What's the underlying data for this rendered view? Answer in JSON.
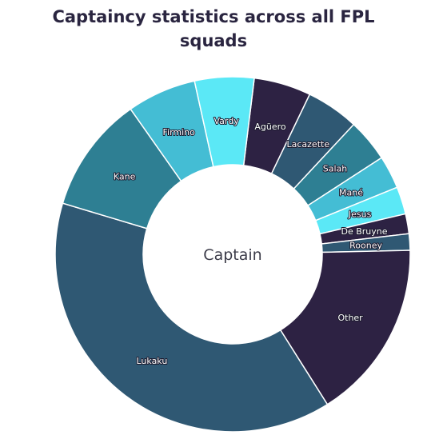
{
  "chart_data": {
    "type": "pie",
    "title_line1": "Captaincy statistics across all FPL",
    "title_line2": "squads",
    "center_label": "Captain",
    "slices": [
      {
        "label": "Agüero",
        "value": 5.2,
        "color": "#2d2243"
      },
      {
        "label": "Lacazette",
        "value": 4.8,
        "color": "#2f5873"
      },
      {
        "label": "Salah",
        "value": 3.9,
        "color": "#2e7f93"
      },
      {
        "label": "Mané",
        "value": 3.0,
        "color": "#44bdd4"
      },
      {
        "label": "Jesus",
        "value": 2.5,
        "color": "#5be8f6"
      },
      {
        "label": "De Bruyne",
        "value": 1.8,
        "color": "#2d2243"
      },
      {
        "label": "Rooney",
        "value": 1.5,
        "color": "#2f5873"
      },
      {
        "label": "Other",
        "value": 16.4,
        "color": "#2d2243"
      },
      {
        "label": "Lukaku",
        "value": 38.6,
        "color": "#2f5873"
      },
      {
        "label": "Kane",
        "value": 10.6,
        "color": "#2e7f93"
      },
      {
        "label": "Firmino",
        "value": 6.3,
        "color": "#44bdd4"
      },
      {
        "label": "Vardy",
        "value": 5.4,
        "color": "#5be8f6"
      }
    ]
  }
}
